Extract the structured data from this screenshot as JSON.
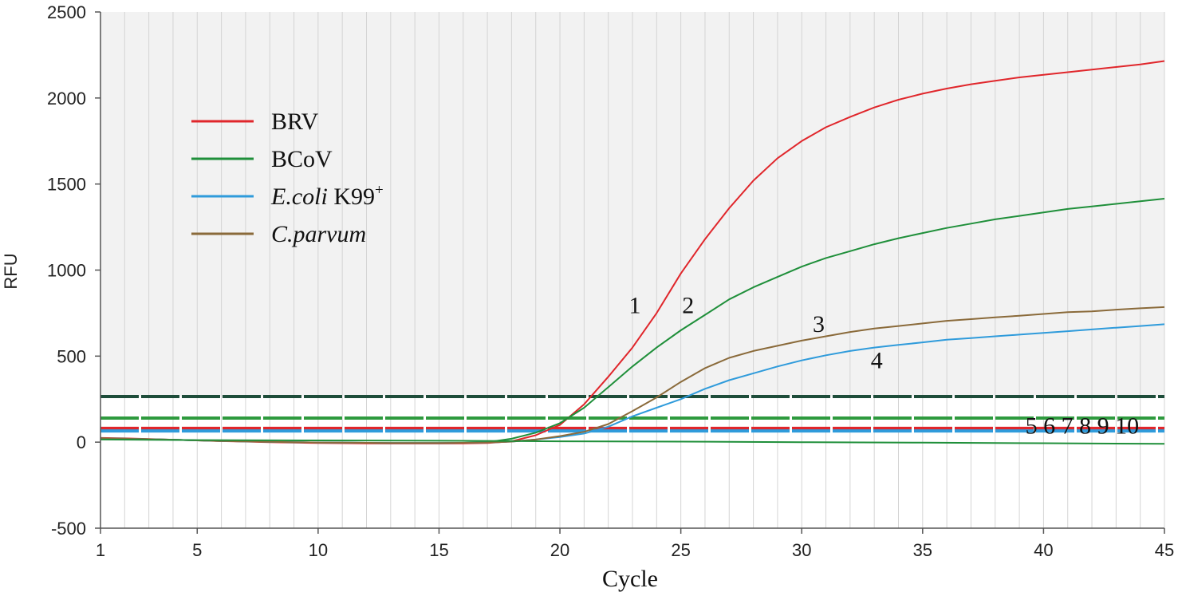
{
  "chart_data": {
    "type": "line",
    "title": "",
    "xlabel": "Cycle",
    "ylabel": "RFU",
    "xlim": [
      1,
      45
    ],
    "ylim": [
      -500,
      2500
    ],
    "xticks": [
      1,
      5,
      10,
      15,
      20,
      25,
      30,
      35,
      40,
      45
    ],
    "yticks": [
      -500,
      0,
      500,
      1000,
      1500,
      2000,
      2500
    ],
    "grid": "vertical lines at every cycle; shaded region above threshold",
    "legend": {
      "position": "top-left",
      "entries": [
        {
          "label": "BRV",
          "color": "#e0262b"
        },
        {
          "label": "BCoV",
          "color": "#1f8f3a"
        },
        {
          "label_italic": "E.coli",
          "label": "K99",
          "sup": "+",
          "color": "#2f9bdb"
        },
        {
          "label_italic": "C.parvum",
          "label": "",
          "color": "#8a6a3a"
        }
      ]
    },
    "thresholds": [
      {
        "value": 265,
        "color": "#1e4d3a"
      },
      {
        "value": 140,
        "color": "#2e9a3e"
      },
      {
        "value": 80,
        "color": "#e0262b"
      },
      {
        "value": 65,
        "color": "#2f9bdb"
      }
    ],
    "series": [
      {
        "name": "BRV",
        "color": "#e0262b",
        "x": [
          1,
          2,
          3,
          4,
          5,
          6,
          7,
          8,
          9,
          10,
          11,
          12,
          13,
          14,
          15,
          16,
          17,
          18,
          19,
          20,
          21,
          22,
          23,
          24,
          25,
          26,
          27,
          28,
          29,
          30,
          31,
          32,
          33,
          34,
          35,
          36,
          37,
          38,
          39,
          40,
          41,
          42,
          43,
          44,
          45
        ],
        "y": [
          25,
          22,
          18,
          14,
          10,
          6,
          3,
          0,
          -3,
          -5,
          -6,
          -7,
          -8,
          -8,
          -8,
          -7,
          -5,
          5,
          40,
          100,
          220,
          380,
          550,
          750,
          980,
          1180,
          1360,
          1520,
          1650,
          1750,
          1830,
          1890,
          1945,
          1990,
          2025,
          2055,
          2080,
          2100,
          2120,
          2135,
          2150,
          2165,
          2180,
          2195,
          2215
        ]
      },
      {
        "name": "BCoV",
        "color": "#1f8f3a",
        "x": [
          1,
          2,
          3,
          4,
          5,
          6,
          7,
          8,
          9,
          10,
          11,
          12,
          13,
          14,
          15,
          16,
          17,
          18,
          19,
          20,
          21,
          22,
          23,
          24,
          25,
          26,
          27,
          28,
          29,
          30,
          31,
          32,
          33,
          34,
          35,
          36,
          37,
          38,
          39,
          40,
          41,
          42,
          43,
          44,
          45
        ],
        "y": [
          22,
          20,
          17,
          14,
          10,
          7,
          4,
          2,
          0,
          -2,
          -3,
          -4,
          -5,
          -5,
          -5,
          -4,
          0,
          20,
          55,
          110,
          200,
          320,
          440,
          550,
          650,
          740,
          830,
          900,
          960,
          1020,
          1070,
          1110,
          1150,
          1185,
          1215,
          1245,
          1270,
          1295,
          1315,
          1335,
          1355,
          1370,
          1385,
          1400,
          1415
        ]
      },
      {
        "name": "E.coli K99+",
        "color": "#2f9bdb",
        "x": [
          1,
          2,
          3,
          4,
          5,
          6,
          7,
          8,
          9,
          10,
          11,
          12,
          13,
          14,
          15,
          16,
          17,
          18,
          19,
          20,
          21,
          22,
          23,
          24,
          25,
          26,
          27,
          28,
          29,
          30,
          31,
          32,
          33,
          34,
          35,
          36,
          37,
          38,
          39,
          40,
          41,
          42,
          43,
          44,
          45
        ],
        "y": [
          22,
          20,
          17,
          14,
          10,
          7,
          4,
          2,
          0,
          -2,
          -3,
          -4,
          -5,
          -5,
          -5,
          -4,
          -2,
          3,
          15,
          30,
          50,
          90,
          150,
          200,
          250,
          310,
          360,
          400,
          440,
          475,
          505,
          530,
          550,
          565,
          580,
          595,
          605,
          615,
          625,
          635,
          645,
          655,
          665,
          675,
          685
        ]
      },
      {
        "name": "C.parvum",
        "color": "#8a6a3a",
        "x": [
          1,
          2,
          3,
          4,
          5,
          6,
          7,
          8,
          9,
          10,
          11,
          12,
          13,
          14,
          15,
          16,
          17,
          18,
          19,
          20,
          21,
          22,
          23,
          24,
          25,
          26,
          27,
          28,
          29,
          30,
          31,
          32,
          33,
          34,
          35,
          36,
          37,
          38,
          39,
          40,
          41,
          42,
          43,
          44,
          45
        ],
        "y": [
          22,
          20,
          17,
          14,
          10,
          7,
          4,
          2,
          0,
          -2,
          -3,
          -4,
          -5,
          -5,
          -5,
          -4,
          -2,
          3,
          15,
          35,
          60,
          105,
          180,
          260,
          350,
          430,
          490,
          530,
          560,
          590,
          615,
          640,
          660,
          675,
          690,
          705,
          715,
          725,
          735,
          745,
          755,
          760,
          770,
          778,
          785
        ]
      },
      {
        "name": "negative",
        "color": "#1f8f3a",
        "x": [
          1,
          5,
          10,
          15,
          20,
          25,
          30,
          35,
          40,
          45
        ],
        "y": [
          15,
          12,
          10,
          8,
          5,
          3,
          0,
          -3,
          -6,
          -10
        ]
      }
    ],
    "annotations": [
      {
        "text": "1",
        "x": 23.1,
        "y": 750
      },
      {
        "text": "2",
        "x": 25.3,
        "y": 750
      },
      {
        "text": "3",
        "x": 30.7,
        "y": 640
      },
      {
        "text": "4",
        "x": 33.1,
        "y": 430
      },
      {
        "text": "5 6 7 8 9 10",
        "x": 41.6,
        "y": 50
      }
    ]
  }
}
